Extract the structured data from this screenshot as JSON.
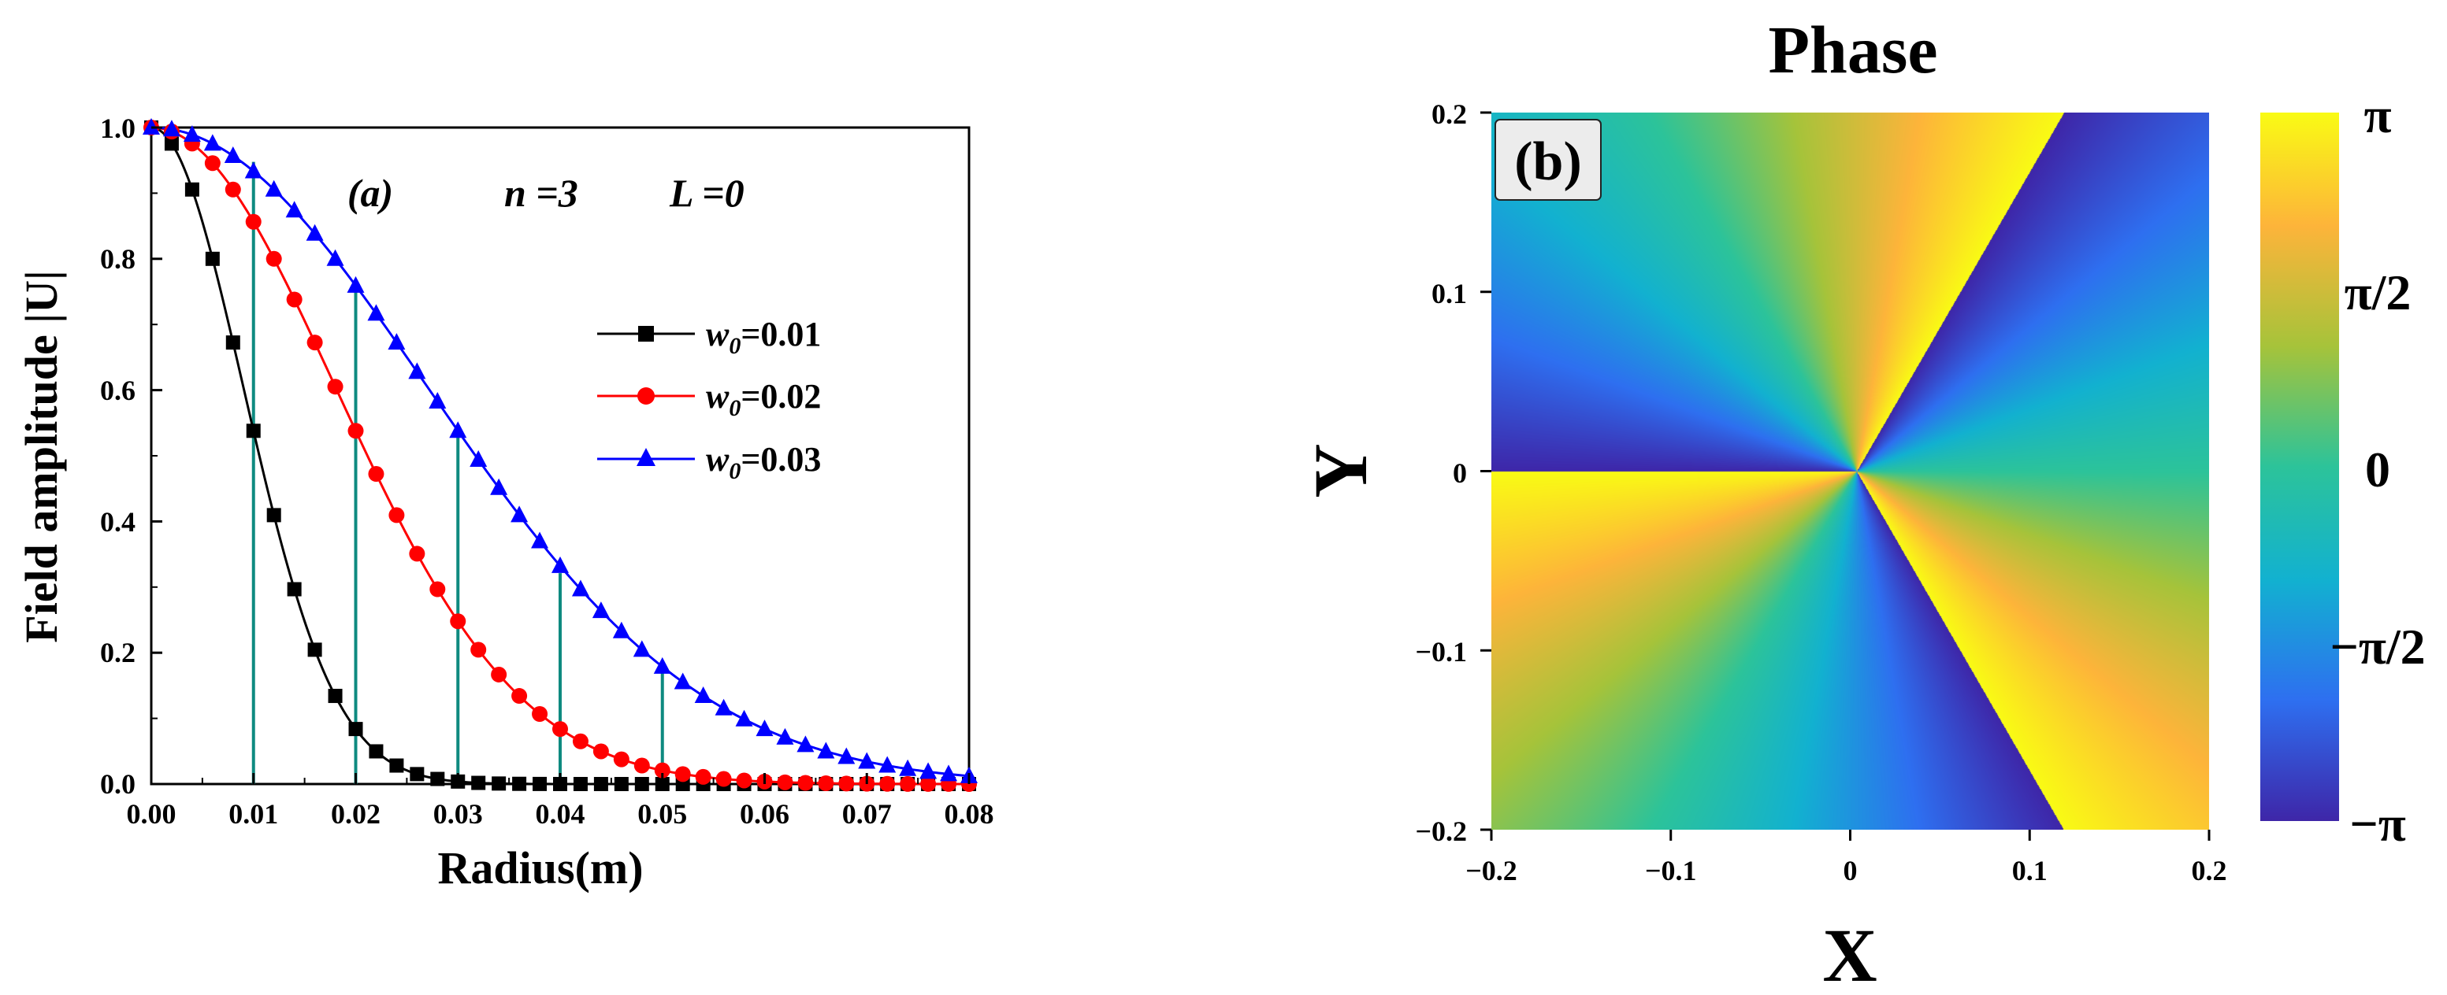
{
  "chart_data": [
    {
      "type": "line",
      "panel": "(a)",
      "annotation_n": "n =3",
      "annotation_L": "L =0",
      "xlabel": "Radius(m)",
      "ylabel": "Field amplitude |U|",
      "xlim": [
        0,
        0.08
      ],
      "ylim": [
        0,
        1.0
      ],
      "xticks": [
        "0.00",
        "0.01",
        "0.02",
        "0.03",
        "0.04",
        "0.05",
        "0.06",
        "0.07",
        "0.08"
      ],
      "yticks": [
        "0.0",
        "0.2",
        "0.4",
        "0.6",
        "0.8",
        "1.0"
      ],
      "n": 3,
      "series": [
        {
          "name": "w0=0.01",
          "label_sub": "0",
          "label_rest": "=0.01",
          "color": "#000000",
          "marker": "square",
          "w0": 0.01
        },
        {
          "name": "w0=0.02",
          "label_sub": "0",
          "label_rest": "=0.02",
          "color": "#ff0000",
          "marker": "circle",
          "w0": 0.02
        },
        {
          "name": "w0=0.03",
          "label_sub": "0",
          "label_rest": "=0.03",
          "color": "#0000ff",
          "marker": "triangle",
          "w0": 0.03
        }
      ],
      "vertical_lines": [
        0.01,
        0.02,
        0.03,
        0.04,
        0.05
      ],
      "vertical_line_color": "#0e8a80"
    },
    {
      "type": "heatmap",
      "title": "Phase",
      "panel": "(b)",
      "xlabel": "X",
      "ylabel": "Y",
      "xlim": [
        -0.2,
        0.2
      ],
      "ylim": [
        -0.2,
        0.2
      ],
      "xticks": [
        "−0.2",
        "−0.1",
        "0",
        "0.1",
        "0.2"
      ],
      "yticks": [
        "0.2",
        "0.1",
        "0",
        "−0.1",
        "−0.2"
      ],
      "topological_charge": 3,
      "colorbar_ticks": [
        "π",
        "π/2",
        "0",
        "−π/2",
        "−π"
      ],
      "colormap": [
        "#3e26a8",
        "#2e6ff0",
        "#12b1d0",
        "#2cc39a",
        "#a6c33a",
        "#fdb43a",
        "#f9fb14"
      ]
    }
  ]
}
